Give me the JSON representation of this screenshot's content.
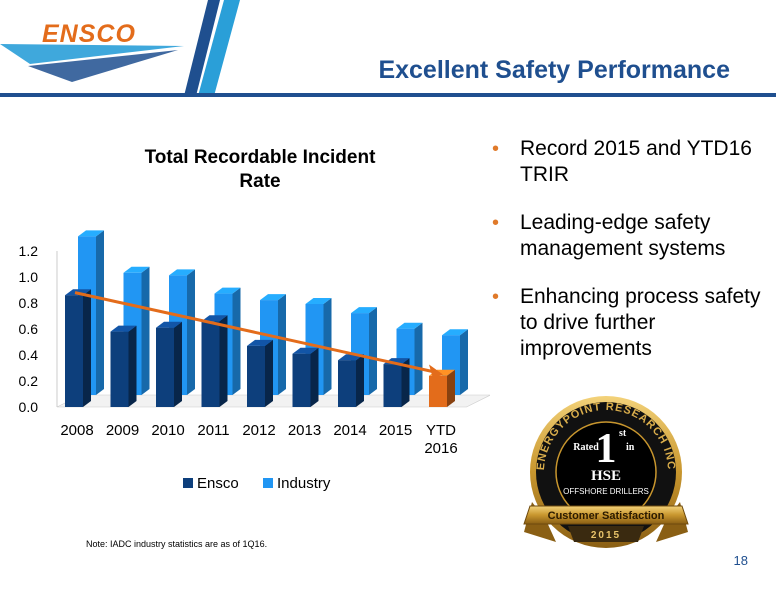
{
  "header": {
    "logo_text": "ENSCO",
    "title": "Excellent Safety Performance"
  },
  "chart_data": {
    "type": "bar",
    "title": "Total Recordable Incident Rate",
    "categories": [
      "2008",
      "2009",
      "2010",
      "2011",
      "2012",
      "2013",
      "2014",
      "2015",
      "YTD 2016"
    ],
    "series": [
      {
        "name": "Ensco",
        "values": [
          0.86,
          0.58,
          0.61,
          0.66,
          0.47,
          0.41,
          0.36,
          0.33,
          0.24
        ],
        "color": "#0d3f7c",
        "highlight_color": "#e36c1b"
      },
      {
        "name": "Industry",
        "values": [
          1.22,
          0.94,
          0.92,
          0.78,
          0.73,
          0.7,
          0.63,
          0.51,
          0.46
        ],
        "color": "#2196f3"
      }
    ],
    "trend_line": {
      "from": 0.88,
      "to": 0.25,
      "color": "#e36c1b"
    },
    "ylim": [
      0,
      1.2
    ],
    "yticks": [
      "0.0",
      "0.2",
      "0.4",
      "0.6",
      "0.8",
      "1.0",
      "1.2"
    ],
    "legend": "bottom",
    "grid": false
  },
  "bullets": [
    "Record 2015 and YTD16 TRIR",
    "Leading-edge safety management systems",
    "Enhancing process safety to drive further improvements"
  ],
  "badge": {
    "arc_top": "ENERGYPOINT RESEARCH INC",
    "rated": "Rated",
    "rank": "1",
    "rank_suffix": "st",
    "in": "in",
    "category": "HSE",
    "segment": "OFFSHORE DRILLERS",
    "ribbon": "Customer Satisfaction",
    "year": "2015"
  },
  "footer": {
    "note": "Note: IADC industry statistics are as of 1Q16.",
    "page": "18"
  }
}
